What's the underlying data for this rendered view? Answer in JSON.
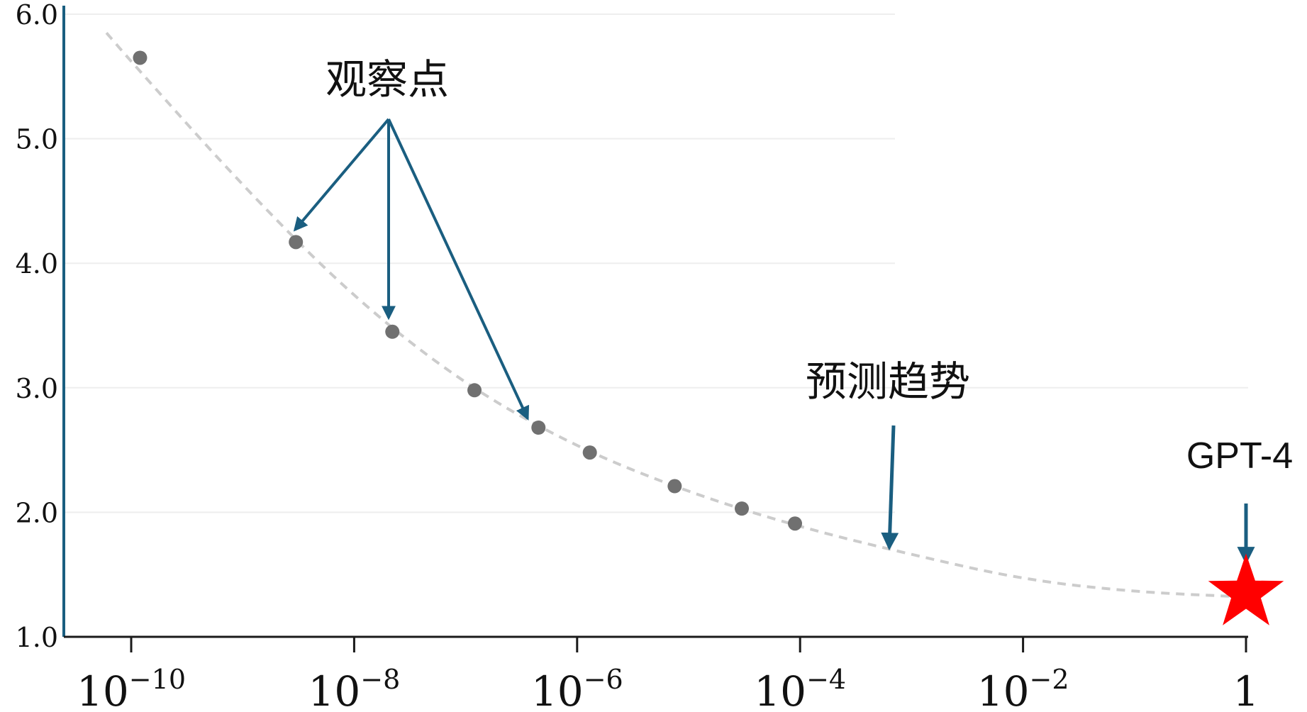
{
  "chart_data": {
    "type": "scatter",
    "x_scale": "log",
    "x_ticks": [
      {
        "value": 1e-10,
        "base": "10",
        "exp": "−10"
      },
      {
        "value": 1e-08,
        "base": "10",
        "exp": "−8"
      },
      {
        "value": 1e-06,
        "base": "10",
        "exp": "−6"
      },
      {
        "value": 0.0001,
        "base": "10",
        "exp": "−4"
      },
      {
        "value": 0.01,
        "base": "10",
        "exp": "−2"
      },
      {
        "value": 1,
        "base": "1",
        "exp": ""
      }
    ],
    "y_ticks": [
      "1.0",
      "2.0",
      "3.0",
      "4.0",
      "5.0",
      "6.0"
    ],
    "ylim": [
      1.0,
      6.0
    ],
    "xlim_log10": [
      -10.6,
      0
    ],
    "grid": "horizontal",
    "observed_points": [
      {
        "x": 1.2e-10,
        "y": 5.65
      },
      {
        "x": 3e-09,
        "y": 4.17
      },
      {
        "x": 2.2e-08,
        "y": 3.45
      },
      {
        "x": 1.2e-07,
        "y": 2.98
      },
      {
        "x": 4.5e-07,
        "y": 2.68
      },
      {
        "x": 1.3e-06,
        "y": 2.48
      },
      {
        "x": 7.5e-06,
        "y": 2.21
      },
      {
        "x": 3e-05,
        "y": 2.03
      },
      {
        "x": 9e-05,
        "y": 1.91
      }
    ],
    "trend_line": [
      {
        "x": 6e-11,
        "y": 5.85
      },
      {
        "x": 1e-10,
        "y": 5.62
      },
      {
        "x": 1e-09,
        "y": 4.62
      },
      {
        "x": 1e-08,
        "y": 3.72
      },
      {
        "x": 1e-07,
        "y": 3.02
      },
      {
        "x": 1e-06,
        "y": 2.52
      },
      {
        "x": 1e-05,
        "y": 2.16
      },
      {
        "x": 0.0001,
        "y": 1.88
      },
      {
        "x": 0.001,
        "y": 1.66
      },
      {
        "x": 0.01,
        "y": 1.46
      },
      {
        "x": 0.1,
        "y": 1.36
      },
      {
        "x": 1,
        "y": 1.32
      }
    ],
    "gpt4_point": {
      "x": 1,
      "y": 1.35
    },
    "annotations": {
      "observed": "观察点",
      "trend": "预测趋势",
      "gpt4": "GPT-4"
    },
    "colors": {
      "axis": "#1a5e80",
      "arrow": "#1a5e80",
      "point": "#707070",
      "trend": "#cccccc",
      "grid": "#eeeeee",
      "star": "#ff0000"
    }
  }
}
